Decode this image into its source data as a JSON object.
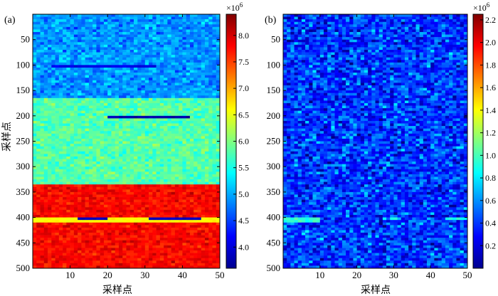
{
  "chart_data": [
    {
      "type": "heatmap",
      "panel_label": "(a)",
      "xlabel": "采样点",
      "ylabel": "采样点",
      "xlim": [
        0,
        50
      ],
      "ylim": [
        500,
        0
      ],
      "x_ticks": [
        10,
        20,
        30,
        40,
        50
      ],
      "y_ticks": [
        50,
        100,
        150,
        200,
        250,
        300,
        350,
        400,
        450,
        500
      ],
      "colorbar": {
        "multiplier": "×10",
        "exponent": "6",
        "range": [
          3.6,
          8.4
        ],
        "ticks": [
          "4.0",
          "4.5",
          "5.0",
          "5.5",
          "6.0",
          "6.5",
          "7.0",
          "7.5",
          "8.0"
        ],
        "tick_values": [
          4.0,
          4.5,
          5.0,
          5.5,
          6.0,
          6.5,
          7.0,
          7.5,
          8.0
        ]
      },
      "regions": [
        {
          "rows": [
            0,
            165
          ],
          "mean": 4.9,
          "noise": 0.35
        },
        {
          "rows": [
            165,
            335
          ],
          "mean": 5.8,
          "noise": 0.3
        },
        {
          "rows": [
            335,
            500
          ],
          "mean": 7.8,
          "noise": 0.25
        }
      ],
      "features": [
        {
          "rows": [
            102,
            107
          ],
          "cols": [
            5,
            33
          ],
          "value": 4.1
        },
        {
          "rows": [
            200,
            207
          ],
          "cols": [
            20,
            42
          ],
          "value": 3.8
        },
        {
          "rows": [
            400,
            408
          ],
          "cols": [
            0,
            50
          ],
          "value": 6.6
        },
        {
          "rows": [
            400,
            407
          ],
          "cols": [
            12,
            20
          ],
          "value": 3.9
        },
        {
          "rows": [
            400,
            407
          ],
          "cols": [
            31,
            45
          ],
          "value": 3.9
        }
      ]
    },
    {
      "type": "heatmap",
      "panel_label": "(b)",
      "xlabel": "采样点",
      "ylabel": "",
      "xlim": [
        0,
        50
      ],
      "ylim": [
        500,
        0
      ],
      "x_ticks": [
        10,
        20,
        30,
        40,
        50
      ],
      "y_ticks": [
        50,
        100,
        150,
        200,
        250,
        300,
        350,
        400,
        450,
        500
      ],
      "colorbar": {
        "multiplier": "×10",
        "exponent": "6",
        "range": [
          0.0,
          2.25
        ],
        "ticks": [
          "0.2",
          "0.4",
          "0.6",
          "0.8",
          "1.0",
          "1.2",
          "1.4",
          "1.6",
          "1.8",
          "2.0",
          "2.2"
        ],
        "tick_values": [
          0.2,
          0.4,
          0.6,
          0.8,
          1.0,
          1.2,
          1.4,
          1.6,
          1.8,
          2.0,
          2.2
        ]
      },
      "regions": [
        {
          "rows": [
            0,
            500
          ],
          "mean": 0.4,
          "noise": 0.28
        }
      ],
      "features": [
        {
          "rows": [
            400,
            408
          ],
          "cols": [
            0,
            10
          ],
          "value": 0.95
        },
        {
          "rows": [
            400,
            407
          ],
          "cols": [
            29,
            31
          ],
          "value": 0.9
        },
        {
          "rows": [
            400,
            407
          ],
          "cols": [
            44,
            50
          ],
          "value": 0.9
        }
      ]
    }
  ]
}
